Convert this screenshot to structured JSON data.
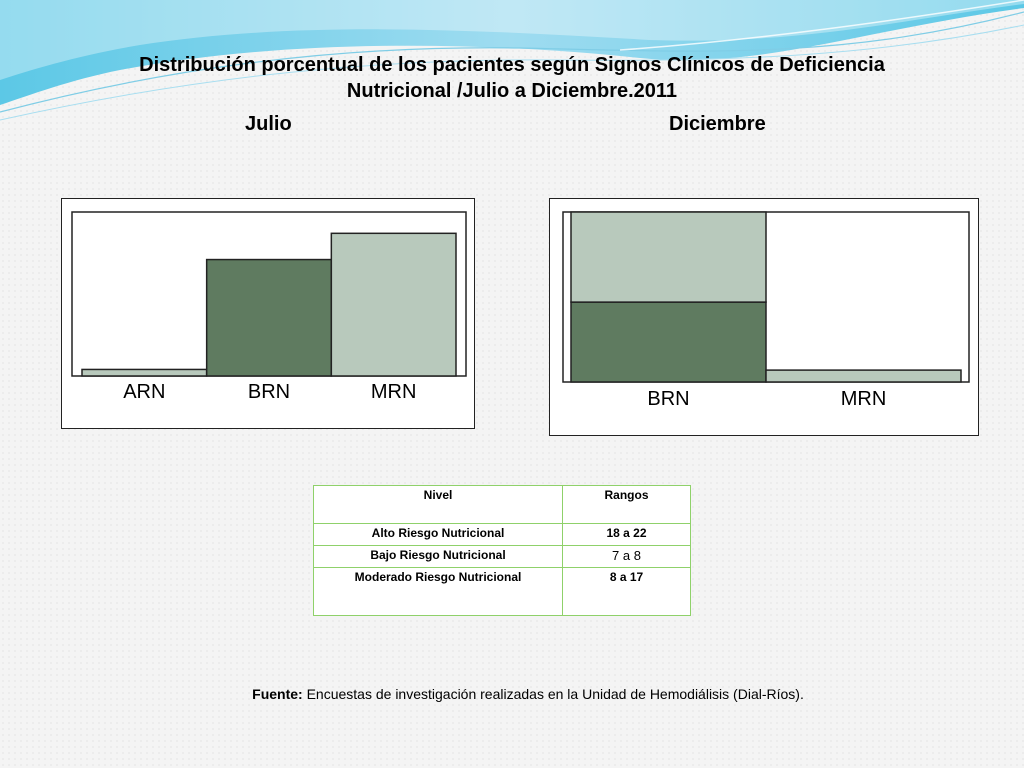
{
  "title_line1": "Distribución porcentual de los pacientes según Signos Clínicos de Deficiencia",
  "title_line2": "Nutricional /Julio a Diciembre.2011",
  "colors": {
    "dark_green": "#5f7b60",
    "light_green": "#b8c9bc",
    "table_border": "#8fd16a"
  },
  "chart_data": [
    {
      "type": "bar",
      "title": "Julio",
      "categories": [
        "ARN",
        "BRN",
        "MRN"
      ],
      "values": [
        4,
        71,
        87
      ],
      "ylim": [
        0,
        100
      ],
      "bar_colors": [
        "light",
        "dark",
        "light"
      ],
      "grid": false,
      "legend": "none"
    },
    {
      "type": "bar",
      "stacked": true,
      "title": "Diciembre",
      "categories": [
        "BRN",
        "MRN"
      ],
      "series": [
        {
          "color": "dark",
          "values": [
            47,
            0
          ]
        },
        {
          "color": "light",
          "values": [
            53,
            7
          ]
        }
      ],
      "ylim": [
        0,
        100
      ],
      "grid": false,
      "legend": "none"
    }
  ],
  "table": {
    "headers": [
      "Nivel",
      "Rangos"
    ],
    "rows": [
      [
        "Alto Riesgo Nutricional",
        "18 a 22"
      ],
      [
        "Bajo Riesgo Nutricional",
        "7 a 8"
      ],
      [
        "Moderado Riesgo Nutricional",
        "8 a 17"
      ]
    ]
  },
  "source_label": "Fuente:",
  "source_text": "Encuestas de investigación realizadas en la Unidad de Hemodiálisis (Dial-Ríos)."
}
